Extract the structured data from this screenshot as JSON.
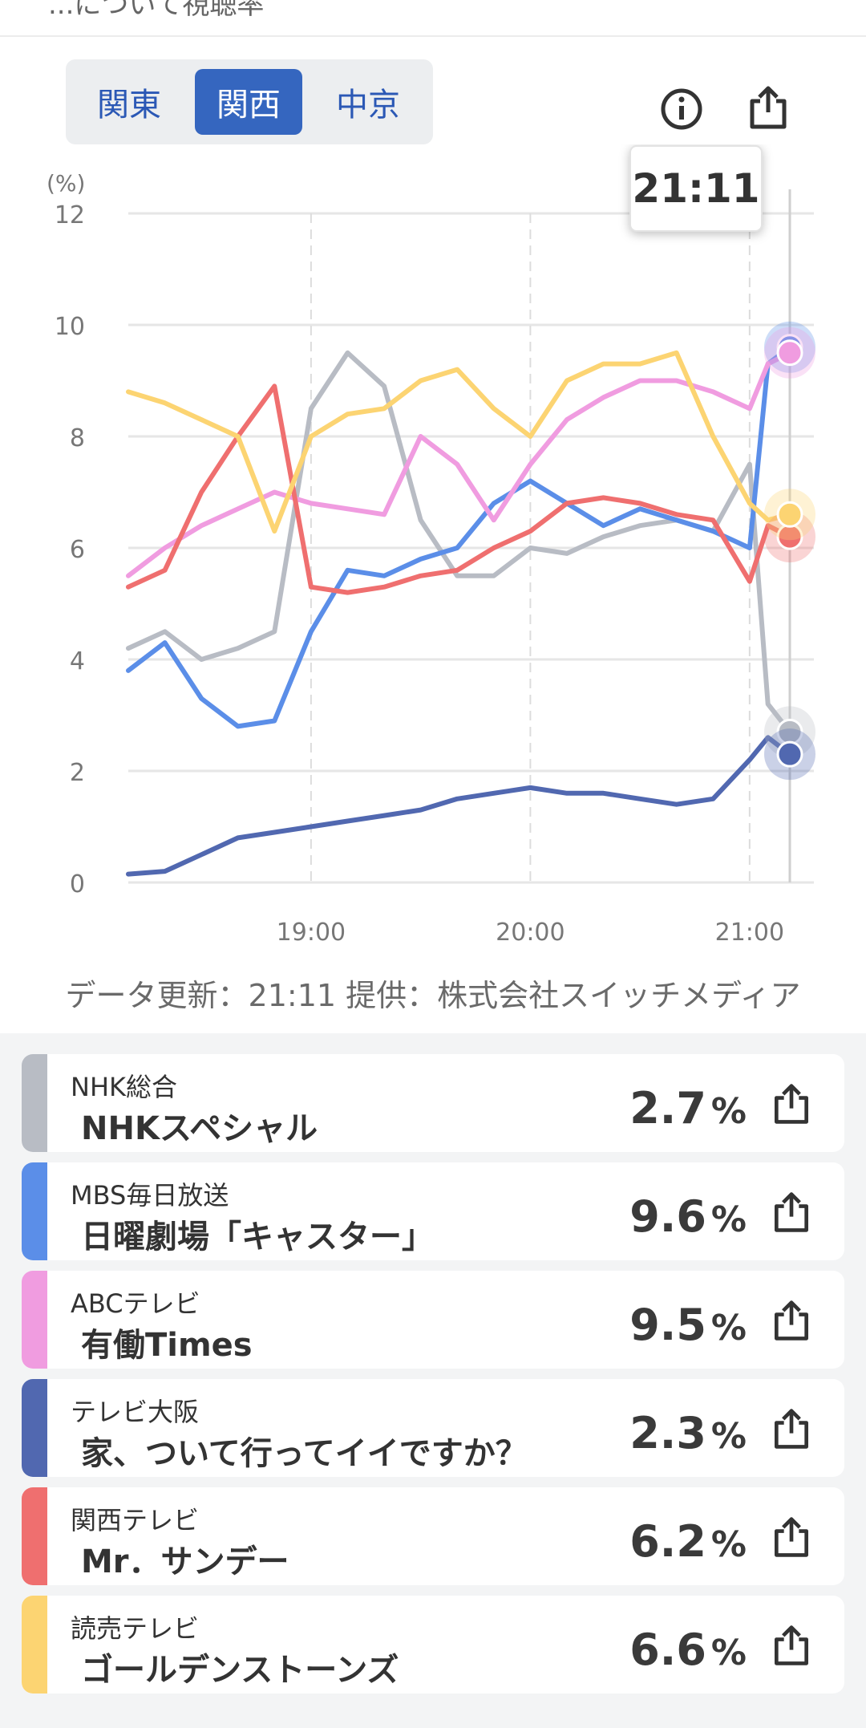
{
  "header": {
    "partial_text": "...について視聴率"
  },
  "region_tabs": [
    {
      "label": "関東",
      "active": false
    },
    {
      "label": "関西",
      "active": true
    },
    {
      "label": "中京",
      "active": false
    }
  ],
  "toolbar": {
    "info_icon": "info-icon",
    "share_icon": "share-icon"
  },
  "tooltip": {
    "time": "21:11"
  },
  "chart_data": {
    "type": "line",
    "title": "",
    "xlabel": "",
    "ylabel": "(%)",
    "ylim": [
      0,
      12
    ],
    "yticks": [
      0,
      2,
      4,
      6,
      8,
      10,
      12
    ],
    "xticks": [
      "19:00",
      "20:00",
      "21:00"
    ],
    "grid": true,
    "legend": "none",
    "x": [
      "18:10",
      "18:20",
      "18:30",
      "18:40",
      "18:50",
      "19:00",
      "19:10",
      "19:20",
      "19:30",
      "19:40",
      "19:50",
      "20:00",
      "20:10",
      "20:20",
      "20:30",
      "20:40",
      "20:50",
      "21:00",
      "21:05",
      "21:11"
    ],
    "series": [
      {
        "channel": "NHK総合",
        "color": "#b8bcc4",
        "values": [
          4.2,
          4.5,
          4.0,
          4.2,
          4.5,
          8.5,
          9.5,
          8.9,
          6.5,
          5.5,
          5.5,
          6.0,
          5.9,
          6.2,
          6.4,
          6.5,
          6.3,
          7.5,
          3.2,
          2.7
        ]
      },
      {
        "channel": "MBS毎日放送",
        "color": "#5b8ee8",
        "values": [
          3.8,
          4.3,
          3.3,
          2.8,
          2.9,
          4.5,
          5.6,
          5.5,
          5.8,
          6.0,
          6.8,
          7.2,
          6.8,
          6.4,
          6.7,
          6.5,
          6.3,
          6.0,
          9.3,
          9.6
        ]
      },
      {
        "channel": "ABCテレビ",
        "color": "#f09ce0",
        "values": [
          5.5,
          6.0,
          6.4,
          6.7,
          7.0,
          6.8,
          6.7,
          6.6,
          8.0,
          7.5,
          6.5,
          7.5,
          8.3,
          8.7,
          9.0,
          9.0,
          8.8,
          8.5,
          9.3,
          9.5
        ]
      },
      {
        "channel": "テレビ大阪",
        "color": "#5168b0",
        "values": [
          0.15,
          0.2,
          0.5,
          0.8,
          0.9,
          1.0,
          1.1,
          1.2,
          1.3,
          1.5,
          1.6,
          1.7,
          1.6,
          1.6,
          1.5,
          1.4,
          1.5,
          2.2,
          2.6,
          2.3
        ]
      },
      {
        "channel": "関西テレビ",
        "color": "#ef6f6f",
        "values": [
          5.3,
          5.6,
          7.0,
          8.0,
          8.9,
          5.3,
          5.2,
          5.3,
          5.5,
          5.6,
          6.0,
          6.3,
          6.8,
          6.9,
          6.8,
          6.6,
          6.5,
          5.4,
          6.4,
          6.2
        ]
      },
      {
        "channel": "読売テレビ",
        "color": "#fcd472",
        "values": [
          8.8,
          8.6,
          8.3,
          8.0,
          6.3,
          8.0,
          8.4,
          8.5,
          9.0,
          9.2,
          8.5,
          8.0,
          9.0,
          9.3,
          9.3,
          9.5,
          8.0,
          6.8,
          6.5,
          6.6
        ]
      }
    ]
  },
  "update_info": "データ更新：21:11  提供：株式会社スイッチメディア",
  "programs": [
    {
      "channel": "NHK総合",
      "program": "NHKスペシャル",
      "rating": "2.7",
      "unit": "%",
      "color": "#b8bcc4"
    },
    {
      "channel": "MBS毎日放送",
      "program": "日曜劇場「キャスター」",
      "rating": "9.6",
      "unit": "%",
      "color": "#5b8ee8"
    },
    {
      "channel": "ABCテレビ",
      "program": "有働Times",
      "rating": "9.5",
      "unit": "%",
      "color": "#f09ce0"
    },
    {
      "channel": "テレビ大阪",
      "program": "家、ついて行ってイイですか？",
      "rating": "2.3",
      "unit": "%",
      "color": "#5168b0"
    },
    {
      "channel": "関西テレビ",
      "program": "Mr．サンデー",
      "rating": "6.2",
      "unit": "%",
      "color": "#ef6f6f"
    },
    {
      "channel": "読売テレビ",
      "program": "ゴールデンストーンズ",
      "rating": "6.6",
      "unit": "%",
      "color": "#fcd472"
    }
  ]
}
